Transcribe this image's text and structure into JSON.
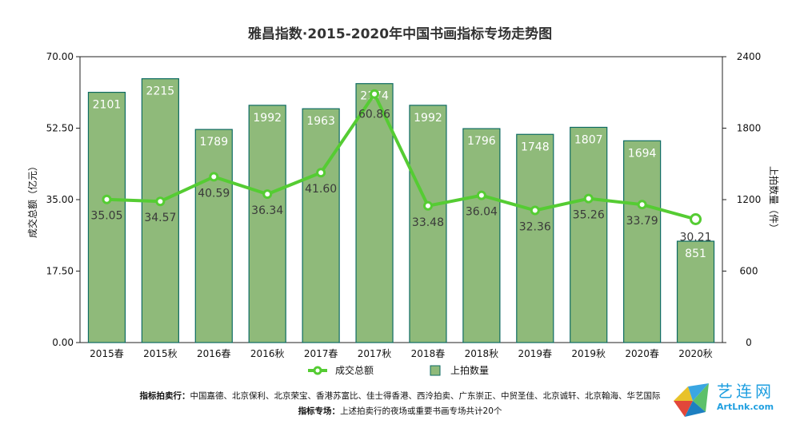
{
  "chart_data": {
    "type": "bar",
    "title": "雅昌指数·2015-2020年中国书画指标专场走势图",
    "categories": [
      "2015春",
      "2015秋",
      "2016春",
      "2016秋",
      "2017春",
      "2017秋",
      "2018春",
      "2018秋",
      "2019春",
      "2019秋",
      "2020春",
      "2020秋"
    ],
    "series": [
      {
        "name": "上拍数量",
        "type": "bar",
        "axis": "right",
        "color": "#8fba7a",
        "values": [
          2101,
          2215,
          1789,
          1992,
          1963,
          2174,
          1992,
          1796,
          1748,
          1807,
          1694,
          851
        ]
      },
      {
        "name": "成交总额",
        "type": "line",
        "axis": "left",
        "color": "#55cc33",
        "values": [
          35.05,
          34.57,
          40.59,
          36.34,
          41.6,
          60.86,
          33.48,
          36.04,
          32.36,
          35.26,
          33.79,
          30.21
        ]
      }
    ],
    "ylabel": "成交总额（亿元）",
    "y2label": "上拍数量（件）",
    "ylim": [
      0,
      70
    ],
    "y2lim": [
      0,
      2400
    ],
    "yticks": [
      "0.00",
      "17.50",
      "35.00",
      "52.50",
      "70.00"
    ],
    "y2ticks": [
      "0",
      "600",
      "1200",
      "1800",
      "2400"
    ],
    "grid": false,
    "legend": "bottom"
  },
  "notes": {
    "line1_label": "指标拍卖行：",
    "line1_text": "中国嘉德、北京保利、北京荣宝、香港苏富比、佳士得香港、西泠拍卖、广东崇正、中贸圣佳、北京诚轩、北京翰海、华艺国际",
    "line2_label": "指标专场：",
    "line2_text": "上述拍卖行的夜场或重要书画专场共计20个"
  },
  "watermark": {
    "name": "艺连网",
    "url": "ArtLnk.com",
    "color": "#1f9fe0"
  }
}
